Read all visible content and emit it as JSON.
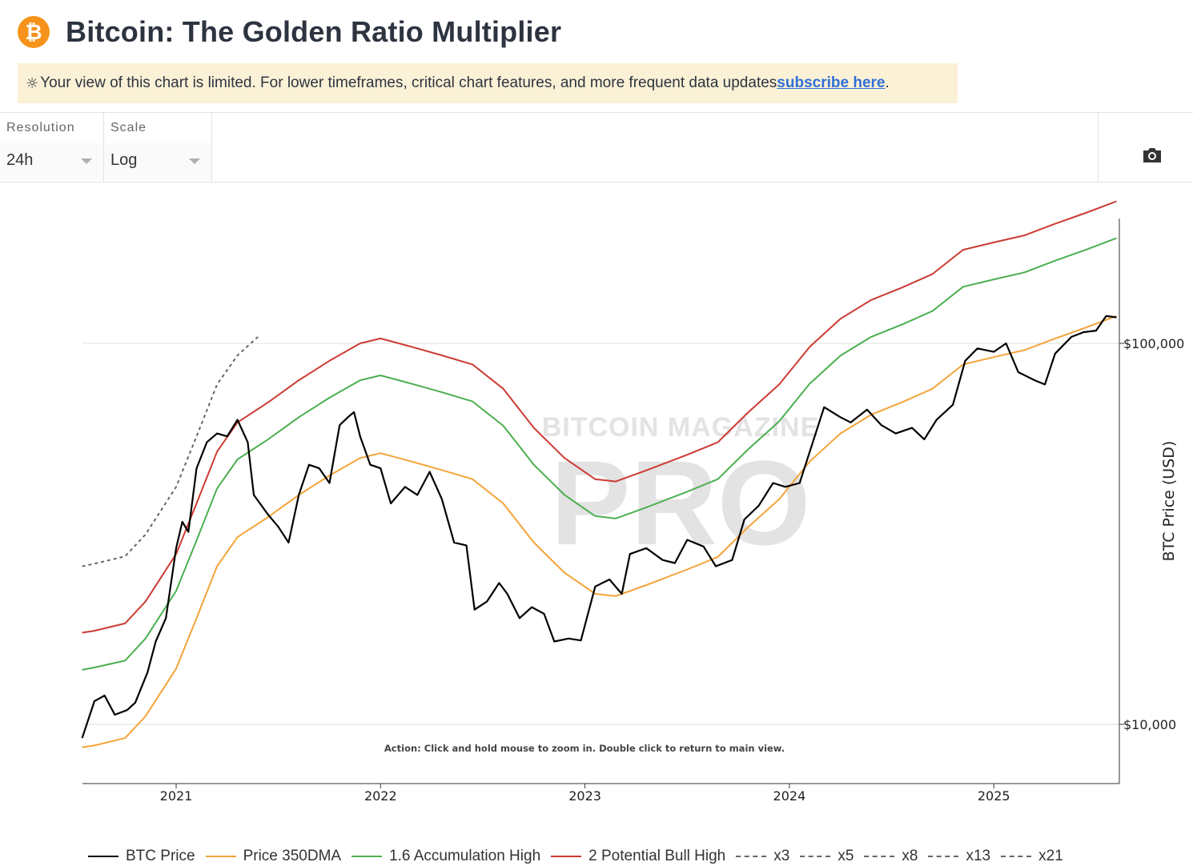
{
  "header": {
    "logo_glyph": "₿",
    "logo_icon": "bitcoin-logo-icon",
    "title": "Bitcoin: The Golden Ratio Multiplier"
  },
  "banner": {
    "icon": "sun-icon",
    "text": "Your view of this chart is limited. For lower timeframes, critical chart features, and more frequent data updates ",
    "link": "subscribe here",
    "suffix": "."
  },
  "controls": {
    "resolution": {
      "label": "Resolution",
      "value": "24h"
    },
    "scale": {
      "label": "Scale",
      "value": "Log"
    },
    "camera_icon": "camera-icon"
  },
  "colors": {
    "btc": "#000000",
    "dma": "#f4a43a",
    "acc": "#4caf50",
    "bull": "#cc3b33",
    "dashed": "#666666",
    "brand": "#f7931a"
  },
  "chart_data": {
    "type": "line",
    "y_axis_label": "BTC Price (USD)",
    "y_scale": "log",
    "y_ticks": [
      {
        "value": 100000,
        "label": "$100,000"
      },
      {
        "value": 10000,
        "label": "$10,000"
      }
    ],
    "x_ticks": [
      {
        "year": 2021,
        "label": "2021"
      },
      {
        "year": 2022,
        "label": "2022"
      },
      {
        "year": 2023,
        "label": "2023"
      },
      {
        "year": 2024,
        "label": "2024"
      },
      {
        "year": 2025,
        "label": "2025"
      }
    ],
    "x_range": [
      "2020-07",
      "2025-07"
    ],
    "y_range": [
      7000,
      260000
    ],
    "watermark_top": "BITCOIN MAGAZINE",
    "watermark_bottom": "PRO",
    "annotation": "Action: Click and hold mouse to zoom in.  Double click to return to main view.",
    "legend": [
      "BTC Price",
      "Price 350DMA",
      "1.6 Accumulation High",
      "2 Potential Bull High",
      "x3",
      "x5",
      "x8",
      "x13",
      "x21"
    ],
    "series": [
      {
        "name": "BTC Price",
        "key": "btc",
        "style": "solid",
        "points": [
          [
            2020.54,
            9200
          ],
          [
            2020.6,
            11500
          ],
          [
            2020.65,
            11900
          ],
          [
            2020.7,
            10600
          ],
          [
            2020.76,
            10900
          ],
          [
            2020.8,
            11400
          ],
          [
            2020.86,
            13700
          ],
          [
            2020.9,
            16500
          ],
          [
            2020.95,
            19000
          ],
          [
            2021.0,
            29000
          ],
          [
            2021.03,
            34000
          ],
          [
            2021.06,
            32000
          ],
          [
            2021.1,
            47000
          ],
          [
            2021.15,
            55000
          ],
          [
            2021.2,
            58000
          ],
          [
            2021.25,
            57000
          ],
          [
            2021.3,
            63000
          ],
          [
            2021.35,
            55000
          ],
          [
            2021.38,
            40000
          ],
          [
            2021.45,
            35500
          ],
          [
            2021.5,
            33000
          ],
          [
            2021.55,
            30000
          ],
          [
            2021.6,
            40000
          ],
          [
            2021.65,
            48000
          ],
          [
            2021.7,
            47000
          ],
          [
            2021.75,
            43000
          ],
          [
            2021.8,
            61000
          ],
          [
            2021.84,
            64000
          ],
          [
            2021.87,
            66000
          ],
          [
            2021.9,
            57000
          ],
          [
            2021.95,
            48000
          ],
          [
            2022.0,
            47000
          ],
          [
            2022.05,
            38000
          ],
          [
            2022.12,
            42000
          ],
          [
            2022.18,
            40000
          ],
          [
            2022.24,
            46000
          ],
          [
            2022.3,
            39000
          ],
          [
            2022.36,
            30000
          ],
          [
            2022.42,
            29500
          ],
          [
            2022.46,
            20000
          ],
          [
            2022.52,
            21000
          ],
          [
            2022.58,
            23500
          ],
          [
            2022.62,
            22000
          ],
          [
            2022.68,
            19000
          ],
          [
            2022.74,
            20300
          ],
          [
            2022.8,
            19500
          ],
          [
            2022.85,
            16500
          ],
          [
            2022.92,
            16800
          ],
          [
            2022.98,
            16600
          ],
          [
            2023.05,
            23000
          ],
          [
            2023.12,
            24000
          ],
          [
            2023.18,
            22000
          ],
          [
            2023.22,
            28000
          ],
          [
            2023.3,
            29000
          ],
          [
            2023.38,
            27000
          ],
          [
            2023.44,
            26500
          ],
          [
            2023.5,
            30500
          ],
          [
            2023.58,
            29300
          ],
          [
            2023.64,
            26000
          ],
          [
            2023.72,
            27000
          ],
          [
            2023.78,
            34500
          ],
          [
            2023.85,
            37500
          ],
          [
            2023.92,
            43000
          ],
          [
            2023.98,
            42000
          ],
          [
            2024.05,
            43000
          ],
          [
            2024.1,
            52000
          ],
          [
            2024.17,
            68000
          ],
          [
            2024.25,
            64000
          ],
          [
            2024.3,
            62000
          ],
          [
            2024.38,
            67000
          ],
          [
            2024.45,
            61000
          ],
          [
            2024.52,
            58000
          ],
          [
            2024.6,
            60000
          ],
          [
            2024.66,
            56000
          ],
          [
            2024.72,
            63000
          ],
          [
            2024.8,
            69000
          ],
          [
            2024.86,
            90000
          ],
          [
            2024.92,
            97000
          ],
          [
            2025.0,
            95000
          ],
          [
            2025.06,
            100000
          ],
          [
            2025.12,
            84000
          ],
          [
            2025.2,
            80000
          ],
          [
            2025.25,
            78000
          ],
          [
            2025.3,
            94000
          ],
          [
            2025.38,
            104000
          ],
          [
            2025.44,
            107000
          ],
          [
            2025.5,
            108000
          ],
          [
            2025.55,
            118000
          ],
          [
            2025.6,
            117000
          ]
        ]
      },
      {
        "name": "Price 350DMA",
        "key": "dma",
        "style": "solid",
        "points": [
          [
            2020.54,
            8700
          ],
          [
            2020.6,
            8800
          ],
          [
            2020.75,
            9200
          ],
          [
            2020.85,
            10500
          ],
          [
            2021.0,
            14000
          ],
          [
            2021.1,
            19000
          ],
          [
            2021.2,
            26000
          ],
          [
            2021.3,
            31000
          ],
          [
            2021.45,
            35000
          ],
          [
            2021.6,
            40000
          ],
          [
            2021.75,
            45000
          ],
          [
            2021.9,
            50000
          ],
          [
            2022.0,
            51500
          ],
          [
            2022.15,
            49000
          ],
          [
            2022.3,
            46500
          ],
          [
            2022.45,
            44000
          ],
          [
            2022.6,
            38000
          ],
          [
            2022.75,
            30000
          ],
          [
            2022.9,
            25000
          ],
          [
            2023.05,
            22000
          ],
          [
            2023.15,
            21700
          ],
          [
            2023.3,
            23200
          ],
          [
            2023.5,
            25500
          ],
          [
            2023.65,
            27500
          ],
          [
            2023.8,
            33000
          ],
          [
            2023.95,
            39000
          ],
          [
            2024.1,
            49000
          ],
          [
            2024.25,
            58000
          ],
          [
            2024.4,
            65000
          ],
          [
            2024.55,
            70000
          ],
          [
            2024.7,
            76000
          ],
          [
            2024.85,
            88000
          ],
          [
            2025.0,
            92000
          ],
          [
            2025.15,
            96000
          ],
          [
            2025.3,
            103000
          ],
          [
            2025.45,
            110000
          ],
          [
            2025.6,
            118000
          ]
        ]
      },
      {
        "name": "1.6 Accumulation High",
        "key": "acc",
        "style": "solid",
        "points": [
          [
            2020.54,
            13900
          ],
          [
            2020.6,
            14100
          ],
          [
            2020.75,
            14700
          ],
          [
            2020.85,
            16800
          ],
          [
            2021.0,
            22400
          ],
          [
            2021.1,
            30400
          ],
          [
            2021.2,
            41600
          ],
          [
            2021.3,
            49600
          ],
          [
            2021.45,
            56000
          ],
          [
            2021.6,
            64000
          ],
          [
            2021.75,
            72000
          ],
          [
            2021.9,
            80000
          ],
          [
            2022.0,
            82400
          ],
          [
            2022.15,
            78400
          ],
          [
            2022.3,
            74400
          ],
          [
            2022.45,
            70400
          ],
          [
            2022.6,
            60800
          ],
          [
            2022.75,
            48000
          ],
          [
            2022.9,
            40000
          ],
          [
            2023.05,
            35200
          ],
          [
            2023.15,
            34700
          ],
          [
            2023.3,
            37100
          ],
          [
            2023.5,
            40800
          ],
          [
            2023.65,
            44000
          ],
          [
            2023.8,
            52800
          ],
          [
            2023.95,
            62400
          ],
          [
            2024.1,
            78400
          ],
          [
            2024.25,
            92800
          ],
          [
            2024.4,
            104000
          ],
          [
            2024.55,
            112000
          ],
          [
            2024.7,
            121600
          ],
          [
            2024.85,
            140800
          ],
          [
            2025.0,
            147200
          ],
          [
            2025.15,
            153600
          ],
          [
            2025.3,
            164800
          ],
          [
            2025.45,
            176000
          ],
          [
            2025.6,
            188800
          ]
        ]
      },
      {
        "name": "2 Potential Bull High",
        "key": "bull",
        "style": "solid",
        "points": [
          [
            2020.54,
            17400
          ],
          [
            2020.6,
            17600
          ],
          [
            2020.75,
            18400
          ],
          [
            2020.85,
            21000
          ],
          [
            2021.0,
            28000
          ],
          [
            2021.1,
            38000
          ],
          [
            2021.2,
            52000
          ],
          [
            2021.3,
            62000
          ],
          [
            2021.45,
            70000
          ],
          [
            2021.6,
            80000
          ],
          [
            2021.75,
            90000
          ],
          [
            2021.9,
            100000
          ],
          [
            2022.0,
            103000
          ],
          [
            2022.15,
            98000
          ],
          [
            2022.3,
            93000
          ],
          [
            2022.45,
            88000
          ],
          [
            2022.6,
            76000
          ],
          [
            2022.75,
            60000
          ],
          [
            2022.9,
            50000
          ],
          [
            2023.05,
            44000
          ],
          [
            2023.15,
            43400
          ],
          [
            2023.3,
            46400
          ],
          [
            2023.5,
            51000
          ],
          [
            2023.65,
            55000
          ],
          [
            2023.8,
            66000
          ],
          [
            2023.95,
            78000
          ],
          [
            2024.1,
            98000
          ],
          [
            2024.25,
            116000
          ],
          [
            2024.4,
            130000
          ],
          [
            2024.55,
            140000
          ],
          [
            2024.7,
            152000
          ],
          [
            2024.85,
            176000
          ],
          [
            2025.0,
            184000
          ],
          [
            2025.15,
            192000
          ],
          [
            2025.3,
            206000
          ],
          [
            2025.45,
            220000
          ],
          [
            2025.6,
            236000
          ]
        ]
      },
      {
        "name": "x3",
        "key": "dashed",
        "style": "dashed",
        "points": [
          [
            2020.54,
            26000
          ],
          [
            2020.6,
            26400
          ],
          [
            2020.75,
            27600
          ],
          [
            2020.85,
            31500
          ],
          [
            2021.0,
            42000
          ],
          [
            2021.1,
            57000
          ],
          [
            2021.2,
            78000
          ],
          [
            2021.3,
            93000
          ],
          [
            2021.4,
            104000
          ]
        ]
      }
    ]
  }
}
